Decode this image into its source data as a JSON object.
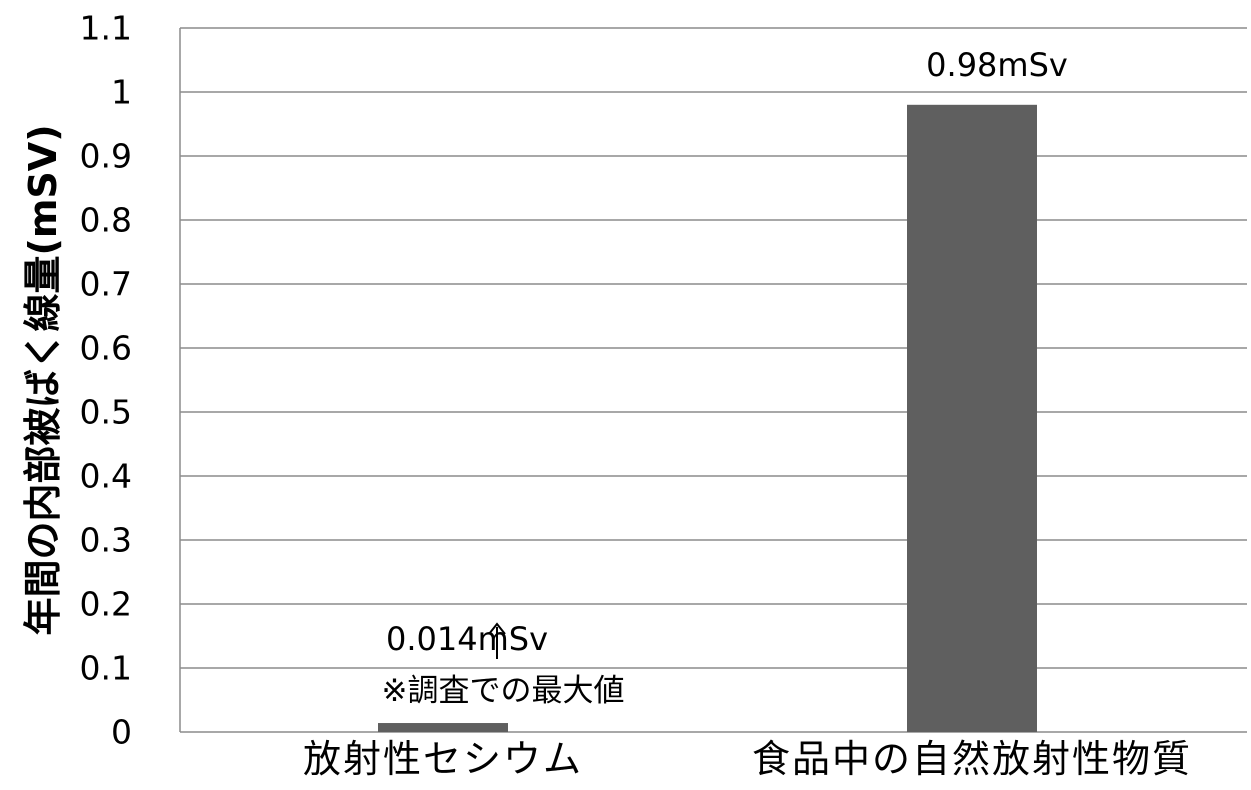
{
  "chart_data": {
    "type": "bar",
    "title": "",
    "xlabel": "",
    "ylabel": "年間の内部被ばく線量(mSV)",
    "ylim": [
      0,
      1.1
    ],
    "yticks": [
      0,
      0.1,
      0.2,
      0.3,
      0.4,
      0.5,
      0.6,
      0.7,
      0.8,
      0.9,
      1,
      1.1
    ],
    "ytick_labels": [
      "0",
      "0.1",
      "0.2",
      "0.3",
      "0.4",
      "0.5",
      "0.6",
      "0.7",
      "0.8",
      "0.9",
      "1",
      "1.1"
    ],
    "grid": true,
    "categories": [
      "放射性セシウム",
      "食品中の自然放射性物質"
    ],
    "values": [
      0.014,
      0.98
    ],
    "data_labels": [
      "0.014mSv",
      "0.98mSv"
    ],
    "annotations": [
      "※調査での最大値"
    ],
    "colors": {
      "bar": "#5f5f5f",
      "grid": "#8c8c8c",
      "axis": "#8c8c8c",
      "text": "#000000"
    }
  }
}
